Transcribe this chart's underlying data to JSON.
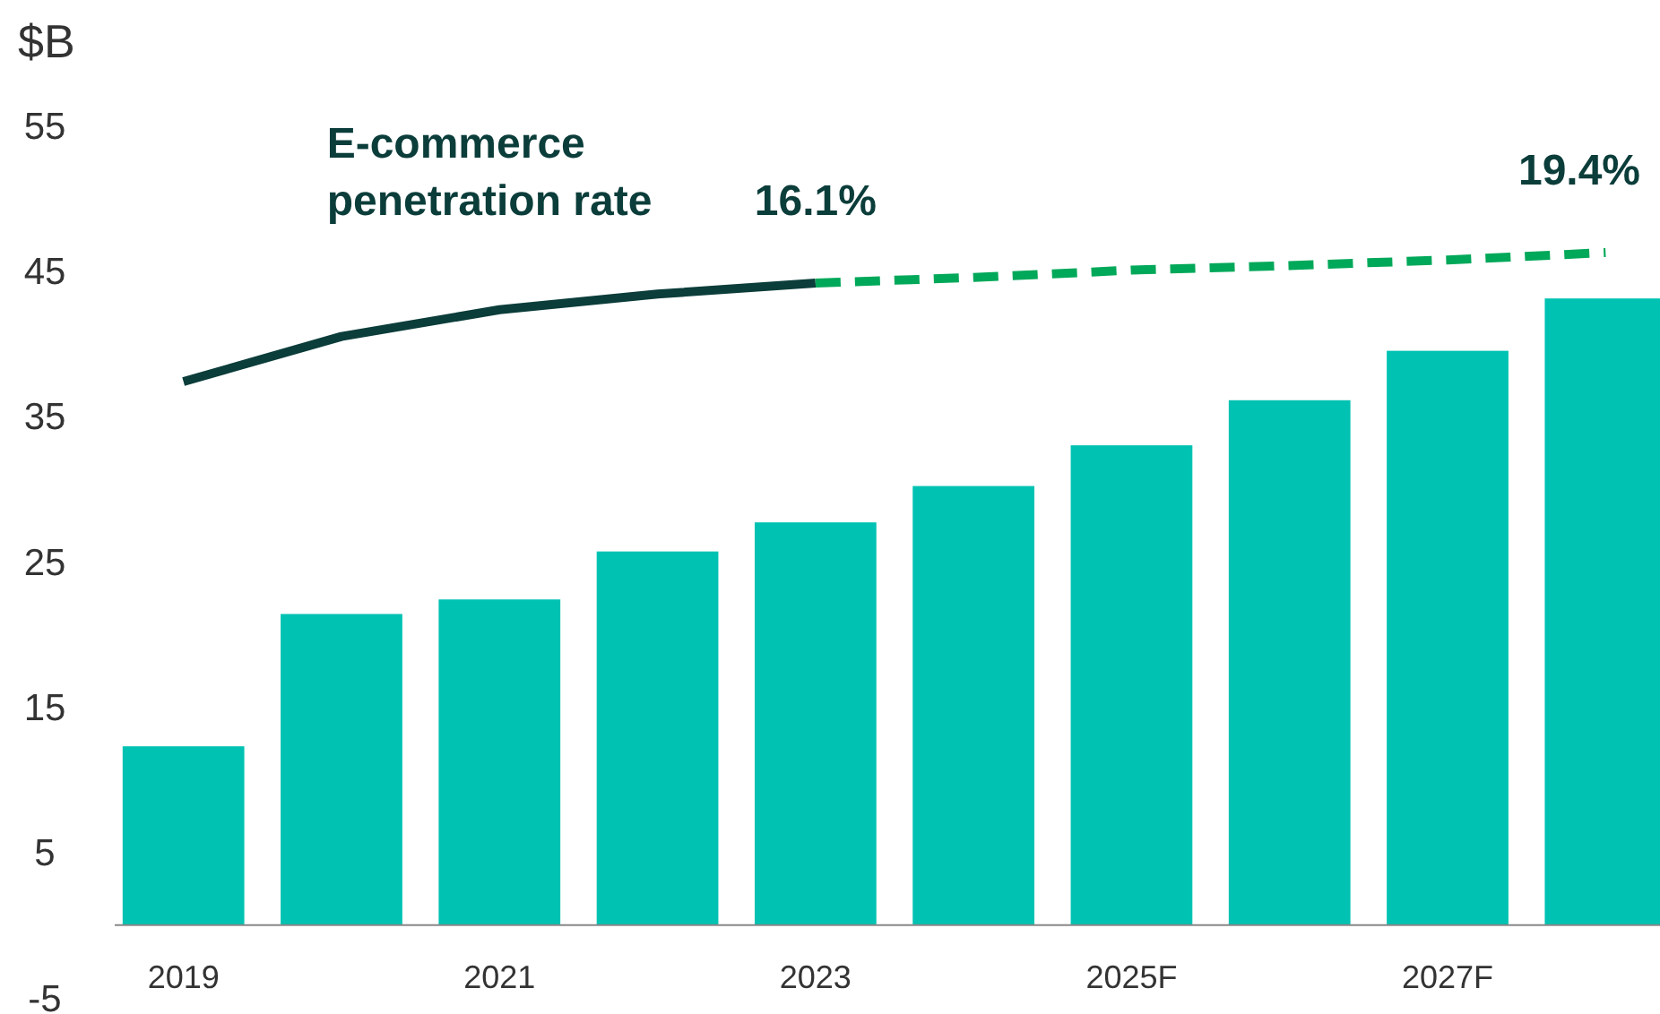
{
  "chart_data": {
    "type": "bar",
    "ylabel": "$B",
    "categories": [
      "2019",
      null,
      "2021",
      null,
      "2023",
      null,
      "2025F",
      null,
      "2027F",
      null
    ],
    "ylim": [
      -5,
      55
    ],
    "yticks": [
      -5,
      5,
      15,
      25,
      35,
      45,
      55
    ],
    "tick_labels": "xy",
    "grid": false,
    "series": [
      {
        "color": "#00c2b2",
        "values": [
          12.3,
          21.4,
          22.4,
          25.7,
          27.7,
          30.2,
          33.0,
          36.1,
          39.5,
          43.1
        ]
      },
      {
        "type": "line",
        "axis": "y2",
        "name": "E-commerce penetration rate",
        "color": "#0b3d3a",
        "line_style": "solid",
        "values": [
          5.4,
          10.3,
          13.2,
          14.9,
          16.1,
          null,
          null,
          null,
          null,
          null
        ]
      },
      {
        "type": "line",
        "axis": "y2",
        "color": "#00a859",
        "line_style": "dashed",
        "values": [
          null,
          null,
          null,
          null,
          16.1,
          16.7,
          17.5,
          18.0,
          18.6,
          19.4
        ],
        "value_labels": [
          null,
          null,
          null,
          null,
          "16.1%",
          null,
          null,
          null,
          null,
          "19.4%"
        ]
      }
    ]
  }
}
